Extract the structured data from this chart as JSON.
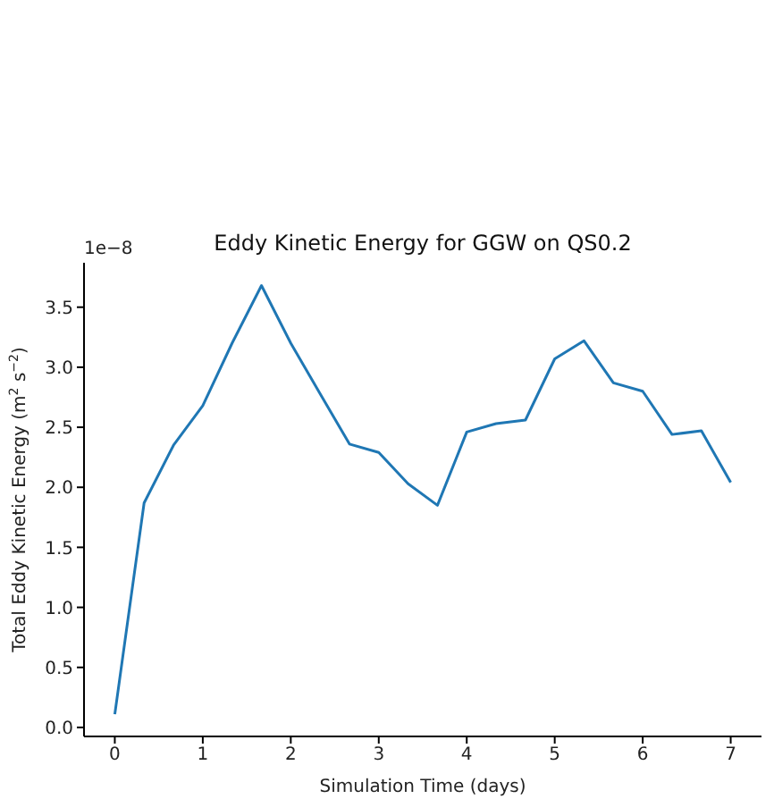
{
  "chart_data": {
    "type": "line",
    "title": "Eddy Kinetic Energy for GGW on QS0.2",
    "xlabel": "Simulation Time (days)",
    "ylabel": "Total Eddy Kinetic Energy (m$^{2}$ s$^{−2}$)",
    "annotations": [
      "1e−8"
    ],
    "x": [
      0,
      0.333,
      0.667,
      1,
      1.333,
      1.667,
      2,
      2.333,
      2.667,
      3,
      3.333,
      3.667,
      4,
      4.333,
      4.667,
      5,
      5.333,
      5.667,
      6,
      6.333,
      6.667,
      7
    ],
    "series": [
      {
        "color": "#1f77b4",
        "values": [
          0.11,
          1.87,
          2.35,
          2.68,
          3.2,
          3.68,
          3.2,
          2.78,
          2.36,
          2.29,
          2.03,
          1.85,
          2.46,
          2.53,
          2.56,
          3.07,
          3.22,
          2.87,
          2.8,
          2.44,
          2.47,
          2.04
        ]
      }
    ],
    "xlim": [
      -0.35,
      7.35
    ],
    "xticks": [
      0,
      1,
      2,
      3,
      4,
      5,
      6,
      7
    ],
    "ylim": [
      -0.075,
      3.87
    ],
    "yticks": [
      {
        "value": 0,
        "label": "0.0"
      },
      0.5,
      {
        "value": 1,
        "label": "1.0"
      },
      1.5,
      {
        "value": 2,
        "label": "2.0"
      },
      2.5,
      {
        "value": 3,
        "label": "3.0"
      },
      3.5
    ],
    "grid": false,
    "legend": false,
    "marker": "none",
    "line_style": "solid"
  }
}
